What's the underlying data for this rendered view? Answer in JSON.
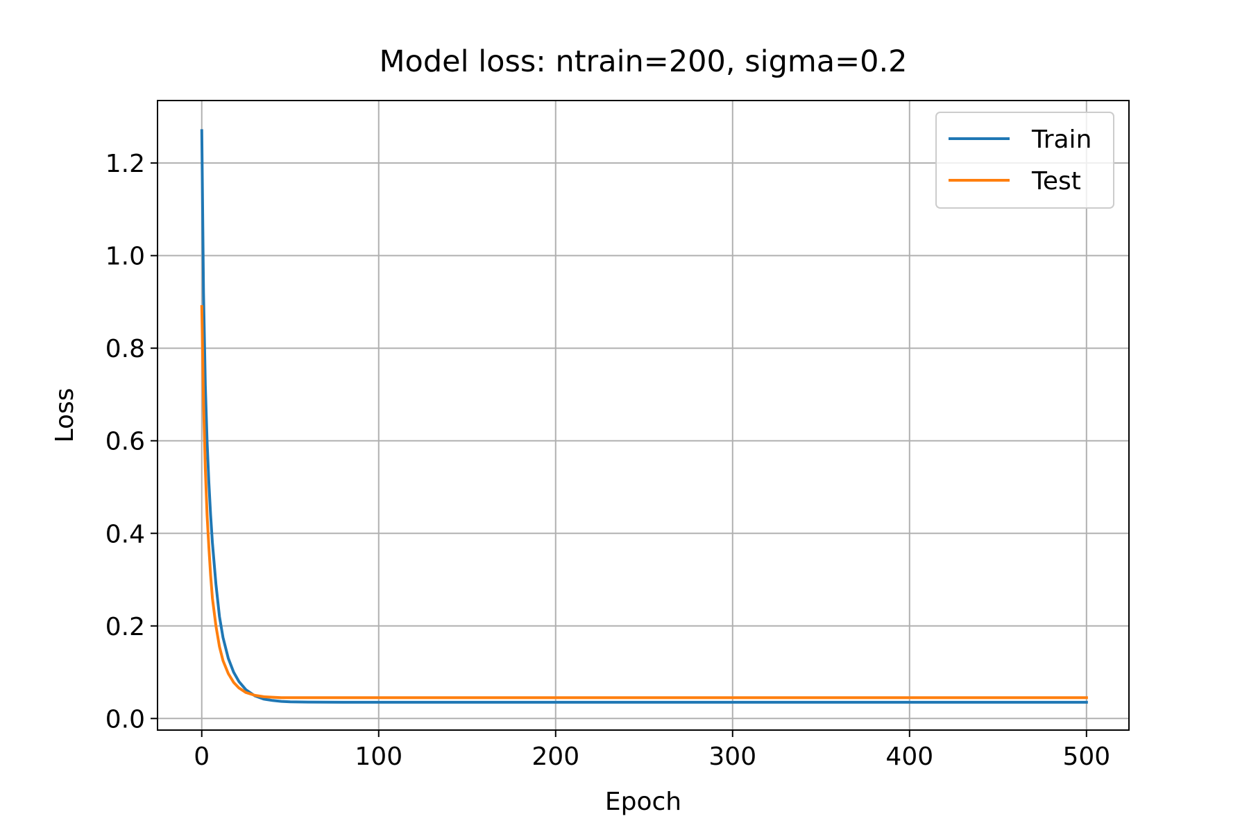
{
  "chart_data": {
    "type": "line",
    "title": "Model loss: ntrain=200, sigma=0.2",
    "xlabel": "Epoch",
    "ylabel": "Loss",
    "xlim": [
      -25,
      524
    ],
    "ylim": [
      -0.025,
      1.335
    ],
    "xticks": [
      0,
      100,
      200,
      300,
      400,
      500
    ],
    "xtick_labels": [
      "0",
      "100",
      "200",
      "300",
      "400",
      "500"
    ],
    "yticks": [
      0.0,
      0.2,
      0.4,
      0.6,
      0.8,
      1.0,
      1.2
    ],
    "ytick_labels": [
      "0.0",
      "0.2",
      "0.4",
      "0.6",
      "0.8",
      "1.0",
      "1.2"
    ],
    "grid": true,
    "legend_position": "top-right",
    "series": [
      {
        "name": "Train",
        "color": "#1f77b4",
        "x": [
          0,
          1,
          2,
          3,
          4,
          5,
          6,
          8,
          10,
          12,
          15,
          18,
          21,
          25,
          30,
          35,
          40,
          45,
          50,
          60,
          80,
          100,
          150,
          200,
          300,
          400,
          500
        ],
        "y": [
          1.27,
          0.92,
          0.72,
          0.6,
          0.51,
          0.44,
          0.38,
          0.29,
          0.22,
          0.175,
          0.13,
          0.1,
          0.08,
          0.062,
          0.049,
          0.042,
          0.039,
          0.037,
          0.036,
          0.0355,
          0.035,
          0.035,
          0.035,
          0.035,
          0.035,
          0.035,
          0.035
        ]
      },
      {
        "name": "Test",
        "color": "#ff7f0e",
        "x": [
          0,
          1,
          2,
          3,
          4,
          5,
          6,
          8,
          10,
          12,
          15,
          18,
          21,
          25,
          30,
          35,
          40,
          45,
          50,
          60,
          80,
          100,
          150,
          200,
          300,
          400,
          500
        ],
        "y": [
          0.89,
          0.68,
          0.54,
          0.44,
          0.37,
          0.31,
          0.26,
          0.2,
          0.155,
          0.125,
          0.097,
          0.078,
          0.066,
          0.056,
          0.05,
          0.047,
          0.046,
          0.045,
          0.045,
          0.045,
          0.045,
          0.045,
          0.045,
          0.045,
          0.045,
          0.045,
          0.045
        ]
      }
    ]
  }
}
